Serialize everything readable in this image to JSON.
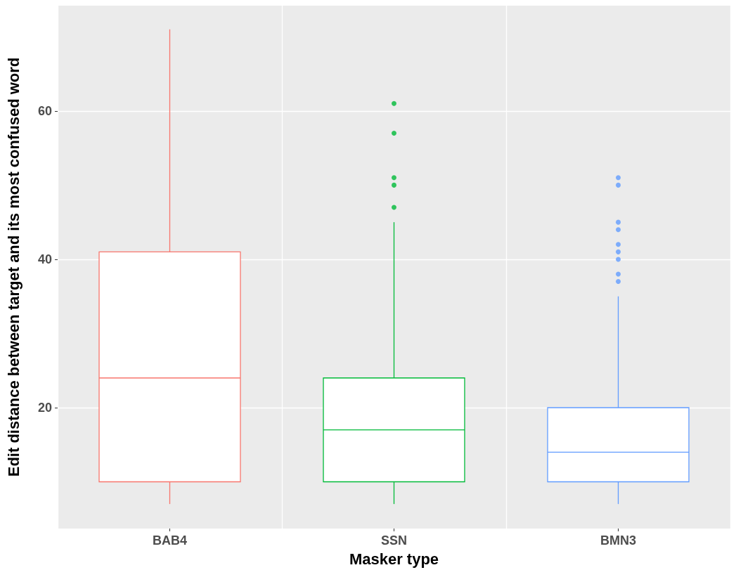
{
  "chart_data": {
    "type": "box",
    "xlabel": "Masker type",
    "ylabel": "Edit distance between target and its most confused word",
    "categories": [
      "BAB4",
      "SSN",
      "BMN3"
    ],
    "colors": [
      "#f8766d",
      "#00ba38",
      "#619cff"
    ],
    "boxes": [
      {
        "low": 7,
        "q1": 10,
        "median": 24,
        "q3": 41,
        "high": 71
      },
      {
        "low": 7,
        "q1": 10,
        "median": 17,
        "q3": 24,
        "high": 45,
        "outliers": [
          47,
          50,
          51,
          57,
          61
        ]
      },
      {
        "low": 7,
        "q1": 10,
        "median": 14,
        "q3": 20,
        "high": 35,
        "outliers": [
          37,
          38,
          40,
          41,
          42,
          44,
          45,
          50,
          51
        ]
      }
    ],
    "ylim": [
      3.7,
      74.2
    ],
    "yticks": [
      20,
      40,
      60
    ],
    "grid": true
  }
}
